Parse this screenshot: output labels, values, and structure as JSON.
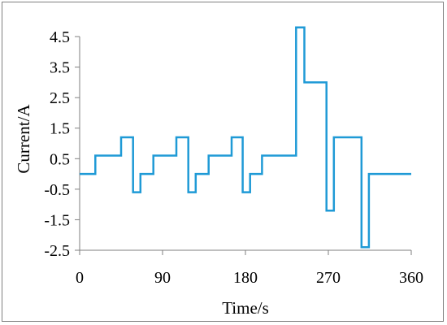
{
  "chart_data": {
    "type": "line",
    "title": "",
    "xlabel": "Time/s",
    "ylabel": "Current/A",
    "xlim": [
      0,
      360
    ],
    "ylim": [
      -2.5,
      4.5
    ],
    "x_ticks": [
      0,
      90,
      180,
      270,
      360
    ],
    "y_ticks": [
      -2.5,
      -1.5,
      -0.5,
      0.5,
      1.5,
      2.5,
      3.5,
      4.5
    ],
    "x_tick_labels": [
      "0",
      "90",
      "180",
      "270",
      "360"
    ],
    "y_tick_labels": [
      "-2.5",
      "-1.5",
      "-0.5",
      "0.5",
      "1.5",
      "2.5",
      "3.5",
      "4.5"
    ],
    "grid": false,
    "legend": "none",
    "series": [
      {
        "color": "#1f9ad6",
        "x": [
          0,
          17,
          17,
          45,
          45,
          58,
          58,
          66,
          66,
          80,
          80,
          105,
          105,
          118,
          118,
          126,
          126,
          140,
          140,
          165,
          165,
          177,
          177,
          185,
          185,
          198,
          198,
          225,
          225,
          235,
          235,
          244,
          244,
          268,
          268,
          276,
          276,
          306,
          306,
          314,
          314,
          360
        ],
        "y": [
          0,
          0,
          0.6,
          0.6,
          1.2,
          1.2,
          -0.6,
          -0.6,
          0,
          0,
          0.6,
          0.6,
          1.2,
          1.2,
          -0.6,
          -0.6,
          0,
          0,
          0.6,
          0.6,
          1.2,
          1.2,
          -0.6,
          -0.6,
          0,
          0,
          0.6,
          0.6,
          0.6,
          0.6,
          4.8,
          4.8,
          3.0,
          3.0,
          -1.2,
          -1.2,
          1.2,
          1.2,
          -2.4,
          -2.4,
          0,
          0
        ]
      }
    ]
  }
}
